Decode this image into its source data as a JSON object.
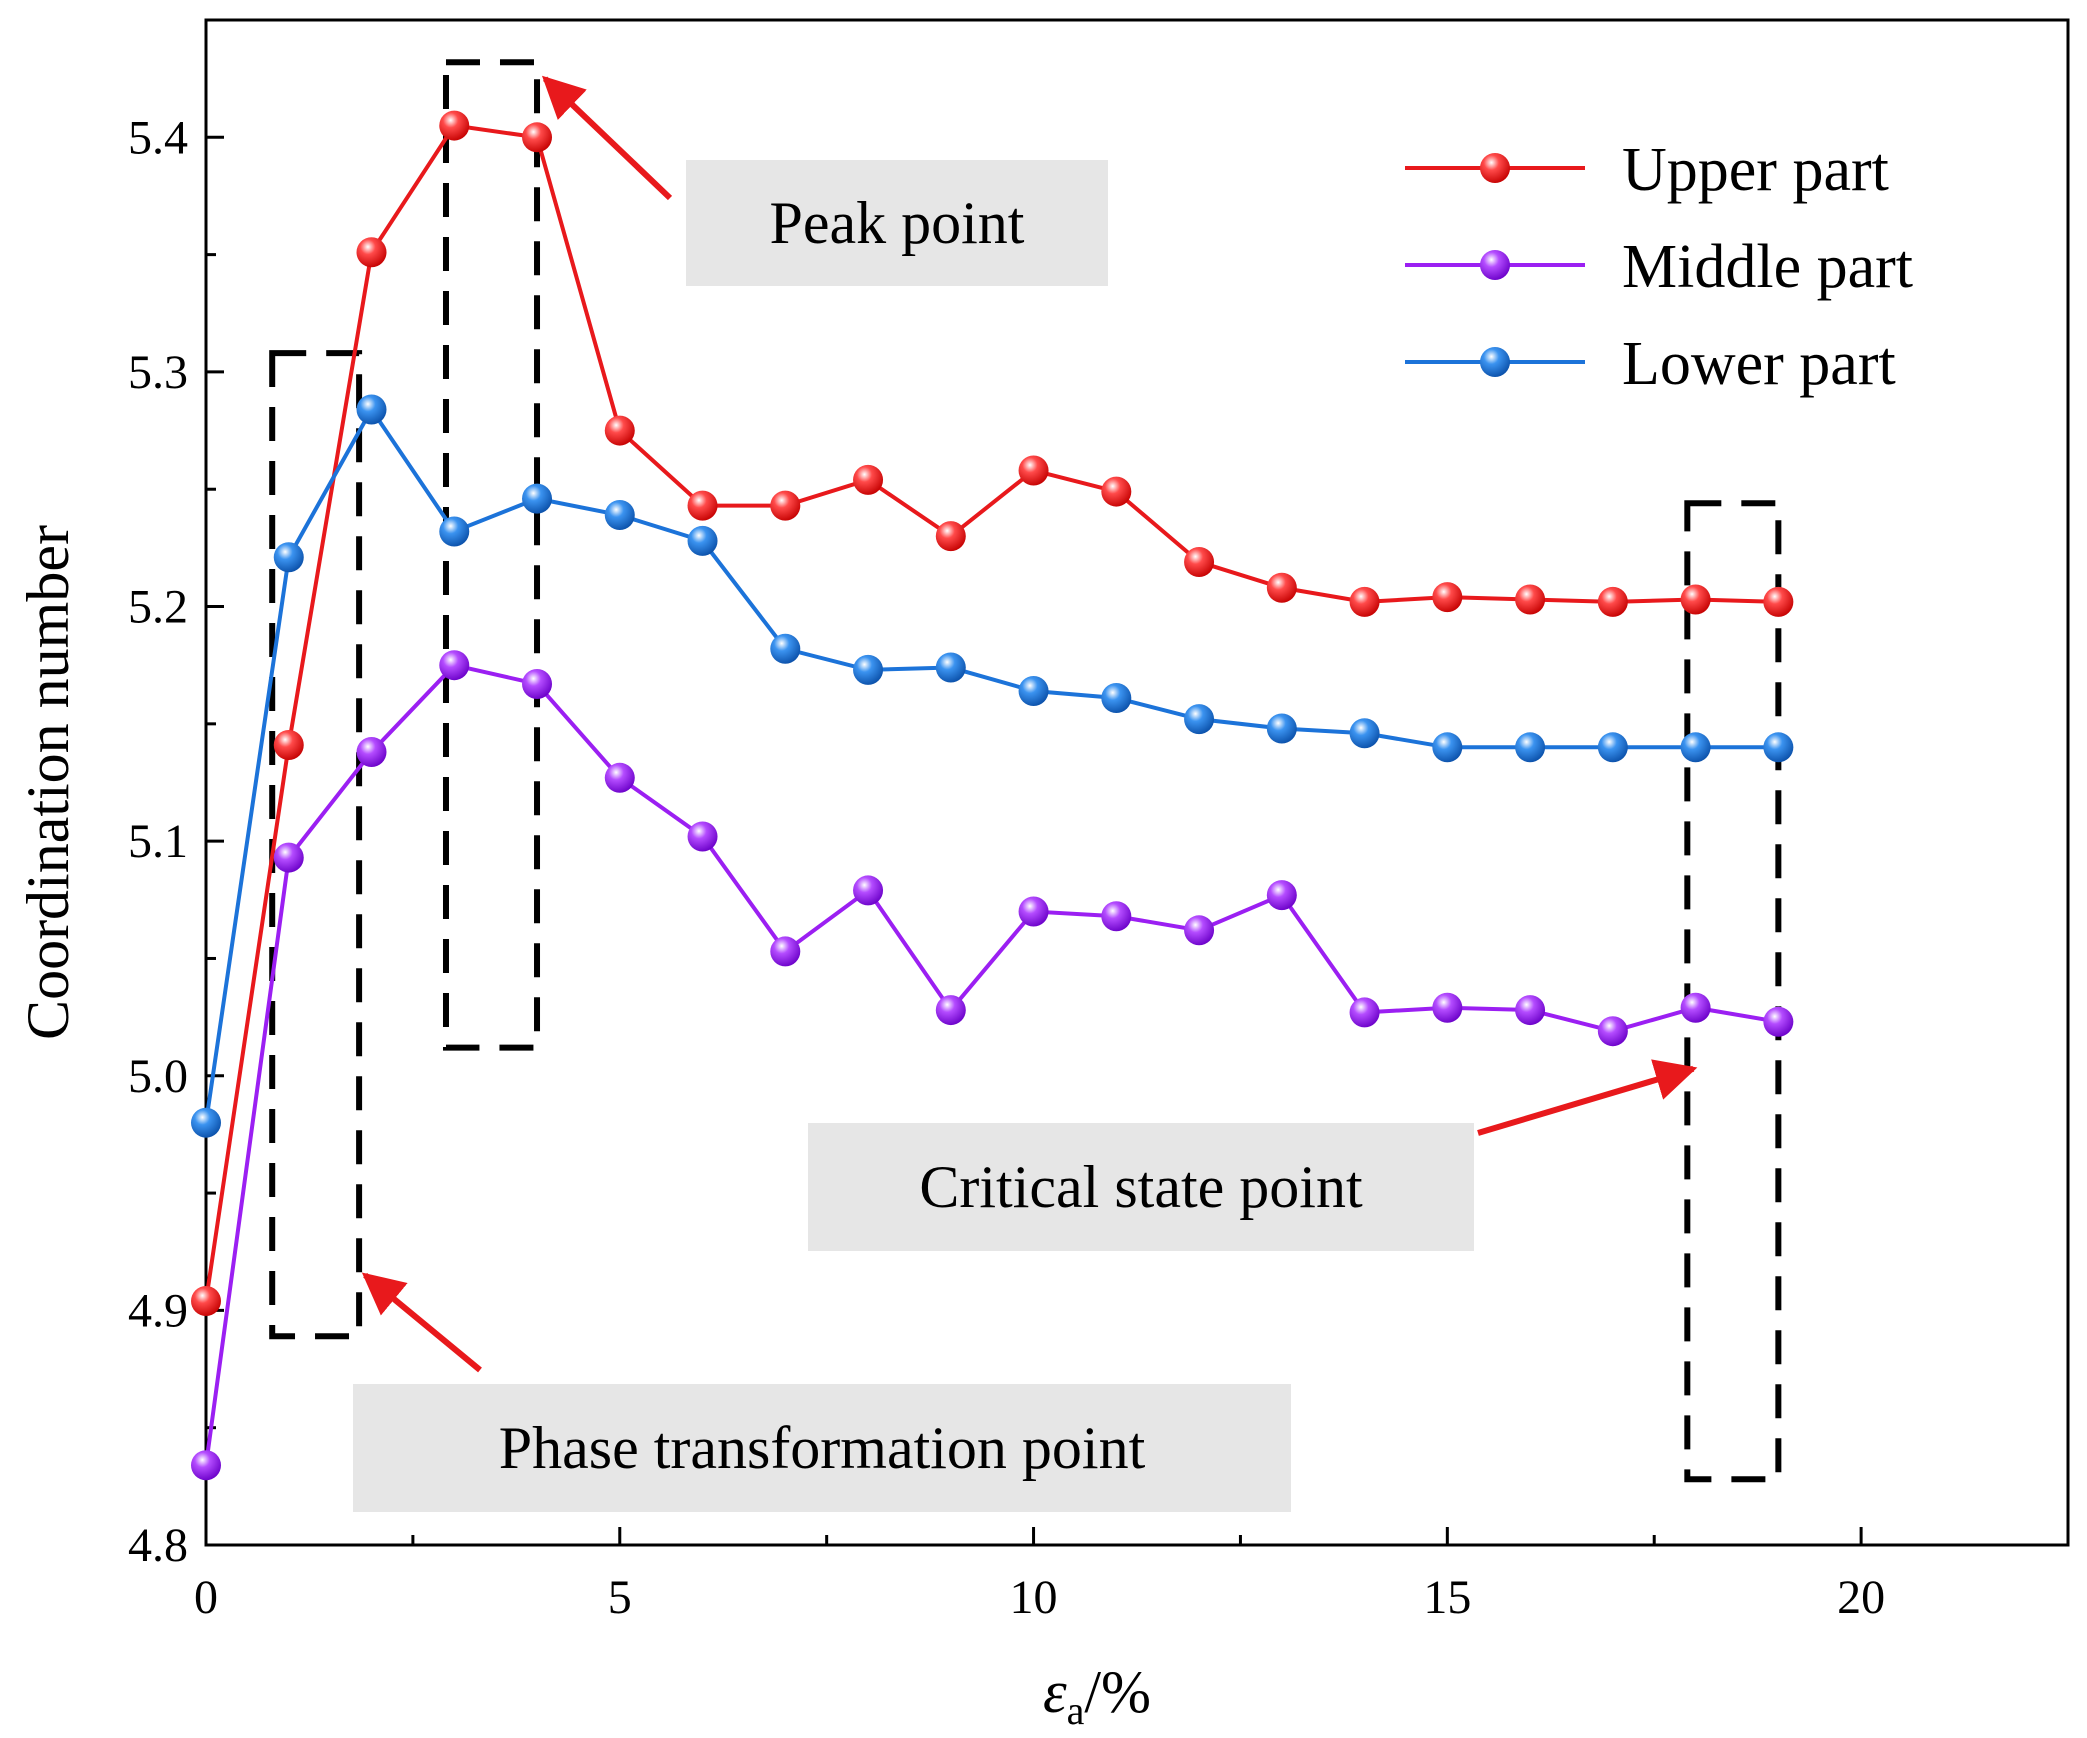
{
  "chart_data": {
    "type": "line",
    "title": "",
    "xlabel": "εa/%",
    "xlabel_main": "ε",
    "xlabel_sub": "a",
    "xlabel_suffix": "/%",
    "ylabel": "Coordination number",
    "xlim": [
      0,
      22.5
    ],
    "ylim": [
      4.8,
      5.45
    ],
    "xticks": [
      0,
      5,
      10,
      15,
      20
    ],
    "xtick_labels": [
      "0",
      "5",
      "10",
      "15",
      "20"
    ],
    "yticks": [
      4.8,
      4.9,
      5.0,
      5.1,
      5.2,
      5.3,
      5.4
    ],
    "ytick_labels": [
      "4.8",
      "4.9",
      "5.0",
      "5.1",
      "5.2",
      "5.3",
      "5.4"
    ],
    "x": [
      0,
      1,
      2,
      3,
      4,
      5,
      6,
      7,
      8,
      9,
      10,
      11,
      12,
      13,
      14,
      15,
      16,
      17,
      18,
      19
    ],
    "series": [
      {
        "name": "Upper part",
        "color": "#e8191c",
        "values": [
          4.904,
          5.141,
          5.351,
          5.405,
          5.4,
          5.275,
          5.243,
          5.243,
          5.254,
          5.23,
          5.258,
          5.249,
          5.219,
          5.208,
          5.202,
          5.204,
          5.203,
          5.202,
          5.203,
          5.202
        ]
      },
      {
        "name": "Middle part",
        "color": "#9b1ff2",
        "values": [
          4.834,
          5.093,
          5.138,
          5.175,
          5.167,
          5.127,
          5.102,
          5.053,
          5.079,
          5.028,
          5.07,
          5.068,
          5.062,
          5.077,
          5.027,
          5.029,
          5.028,
          5.019,
          5.029,
          5.023
        ]
      },
      {
        "name": "Lower part",
        "color": "#1c73d9",
        "values": [
          4.98,
          5.221,
          5.284,
          5.232,
          5.246,
          5.239,
          5.228,
          5.182,
          5.173,
          5.174,
          5.164,
          5.161,
          5.152,
          5.148,
          5.146,
          5.14,
          5.14,
          5.14,
          5.14,
          5.14
        ]
      }
    ],
    "legend_position": "top-right",
    "annotations": [
      {
        "text": "Peak point",
        "box_x": [
          2.9,
          4.0
        ],
        "box_y": [
          5.012,
          5.432
        ],
        "arrow_to": [
          4.0,
          5.425
        ]
      },
      {
        "text": "Phase transformation point",
        "box_x": [
          0.8,
          1.85
        ],
        "box_y": [
          4.889,
          5.308
        ],
        "arrow_to": [
          1.85,
          4.915
        ]
      },
      {
        "text": "Critical state point",
        "box_x": [
          17.9,
          19.0
        ],
        "box_y": [
          4.828,
          5.244
        ],
        "arrow_to": [
          17.9,
          5.003
        ]
      }
    ]
  }
}
